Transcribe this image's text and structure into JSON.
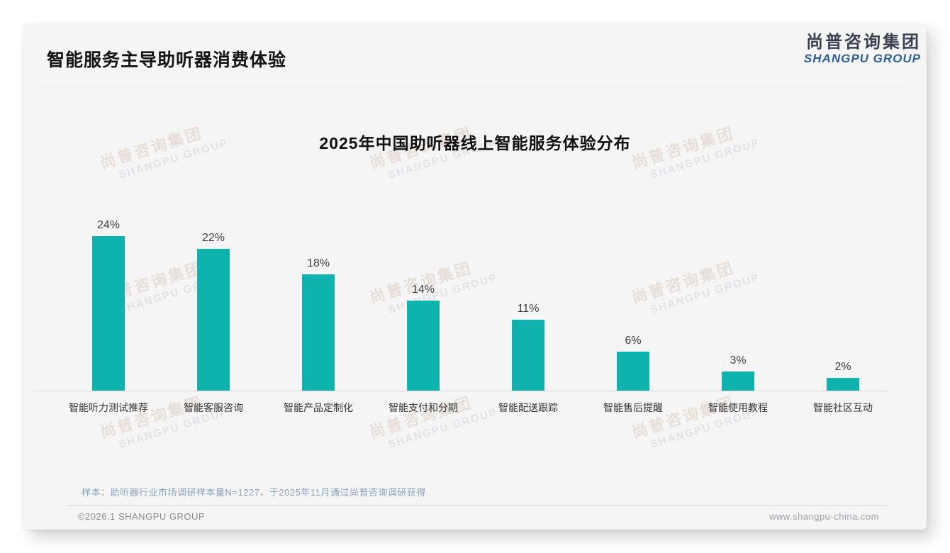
{
  "header": {
    "title": "智能服务主导助听器消费体验"
  },
  "logo": {
    "cn": "尚普咨询集团",
    "en": "SHANGPU GROUP",
    "cn_color": "#3a4150",
    "en_color": "#2d5f9e"
  },
  "watermark": {
    "cn": "尚普咨询集团",
    "en": "SHANGPU GROUP"
  },
  "chart_data": {
    "type": "bar",
    "title": "2025年中国助听器线上智能服务体验分布",
    "categories": [
      "智能听力测试推荐",
      "智能客服咨询",
      "智能产品定制化",
      "智能支付和分期",
      "智能配送跟踪",
      "智能售后提醒",
      "智能使用教程",
      "智能社区互动"
    ],
    "values": [
      24,
      22,
      18,
      14,
      11,
      6,
      3,
      2
    ],
    "value_labels": [
      "24%",
      "22%",
      "18%",
      "14%",
      "11%",
      "6%",
      "3%",
      "2%"
    ],
    "unit": "%",
    "ylim": [
      0,
      26
    ],
    "bar_color": "#0db3ac",
    "grid": false,
    "legend": false
  },
  "footnote": "样本：助听器行业市场调研样本量N=1227，于2025年11月通过尚普咨询调研获得",
  "footer": {
    "left": "©2026.1 SHANGPU GROUP",
    "right": "www.shangpu-china.com"
  }
}
